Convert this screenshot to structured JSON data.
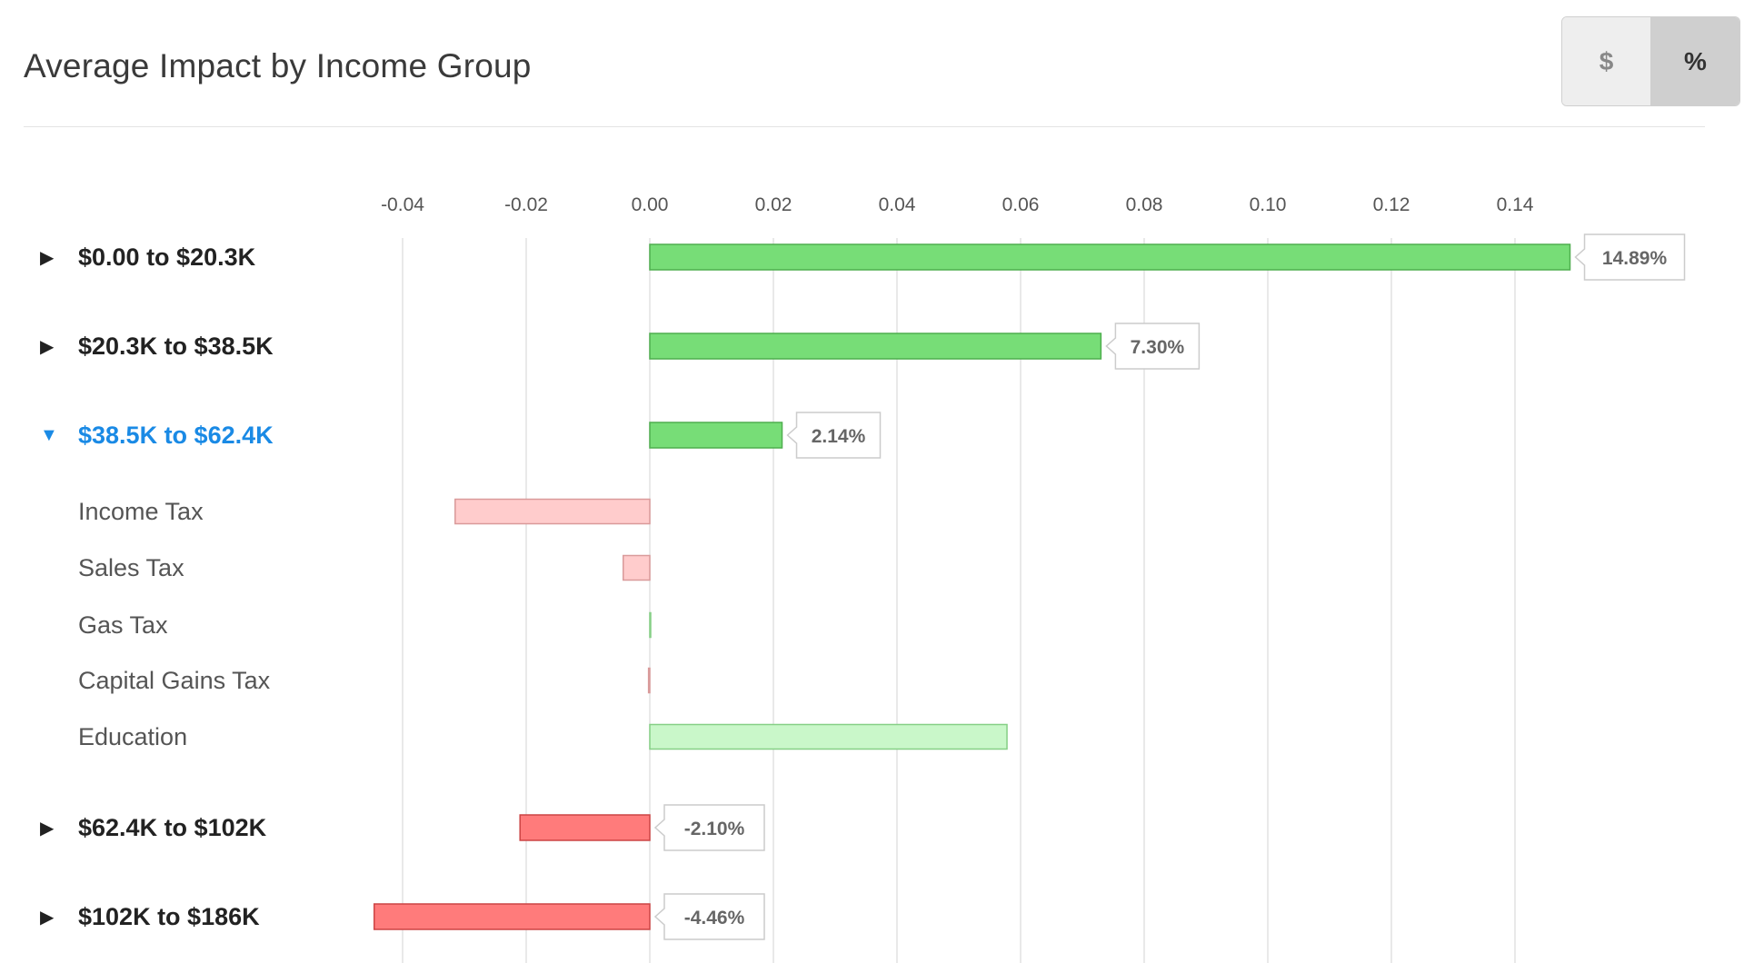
{
  "header": {
    "title": "Average Impact by Income Group"
  },
  "toggle": {
    "dollar_label": "$",
    "percent_label": "%",
    "selected": "%"
  },
  "chart_data": {
    "type": "bar",
    "orientation": "horizontal",
    "xlim": [
      -0.05,
      0.15
    ],
    "xticks": [
      -0.04,
      -0.02,
      0.0,
      0.02,
      0.04,
      0.06,
      0.08,
      0.1,
      0.12,
      0.14
    ],
    "tick_labels": [
      "-0.04",
      "-0.02",
      "0.00",
      "0.02",
      "0.04",
      "0.06",
      "0.08",
      "0.10",
      "0.12",
      "0.14"
    ],
    "grid": true,
    "colors": {
      "positive": "#77dd77",
      "positive_border": "#4fae4f",
      "negative": "#ff7b7b",
      "negative_border": "#cc4444",
      "sub_positive": "#c9f7c9",
      "sub_positive_border": "#86cf86",
      "sub_negative": "#ffcccc",
      "sub_negative_border": "#d99a9a",
      "expanded_label": "#1a8ae5"
    },
    "rows": [
      {
        "label": "$0.00 to $20.3K",
        "value": 0.1489,
        "value_label": "14.89%",
        "expanded": false,
        "sub": false
      },
      {
        "label": "$20.3K to $38.5K",
        "value": 0.073,
        "value_label": "7.30%",
        "expanded": false,
        "sub": false
      },
      {
        "label": "$38.5K to $62.4K",
        "value": 0.0214,
        "value_label": "2.14%",
        "expanded": true,
        "sub": false
      },
      {
        "label": "Income Tax",
        "value": -0.0315,
        "value_label": "",
        "expanded": false,
        "sub": true
      },
      {
        "label": "Sales Tax",
        "value": -0.0043,
        "value_label": "",
        "expanded": false,
        "sub": true
      },
      {
        "label": "Gas Tax",
        "value": 0.0,
        "value_label": "",
        "expanded": false,
        "sub": true
      },
      {
        "label": "Capital Gains Tax",
        "value": -0.0002,
        "value_label": "",
        "expanded": false,
        "sub": true
      },
      {
        "label": "Education",
        "value": 0.0578,
        "value_label": "",
        "expanded": false,
        "sub": true
      },
      {
        "label": "$62.4K to $102K",
        "value": -0.021,
        "value_label": "-2.10%",
        "expanded": false,
        "sub": false
      },
      {
        "label": "$102K to $186K",
        "value": -0.0446,
        "value_label": "-4.46%",
        "expanded": false,
        "sub": false
      }
    ],
    "icons": {
      "collapsed": "caret-right-icon",
      "expanded": "caret-down-icon",
      "collapsed_glyph": "▶",
      "expanded_glyph": "▼"
    }
  }
}
